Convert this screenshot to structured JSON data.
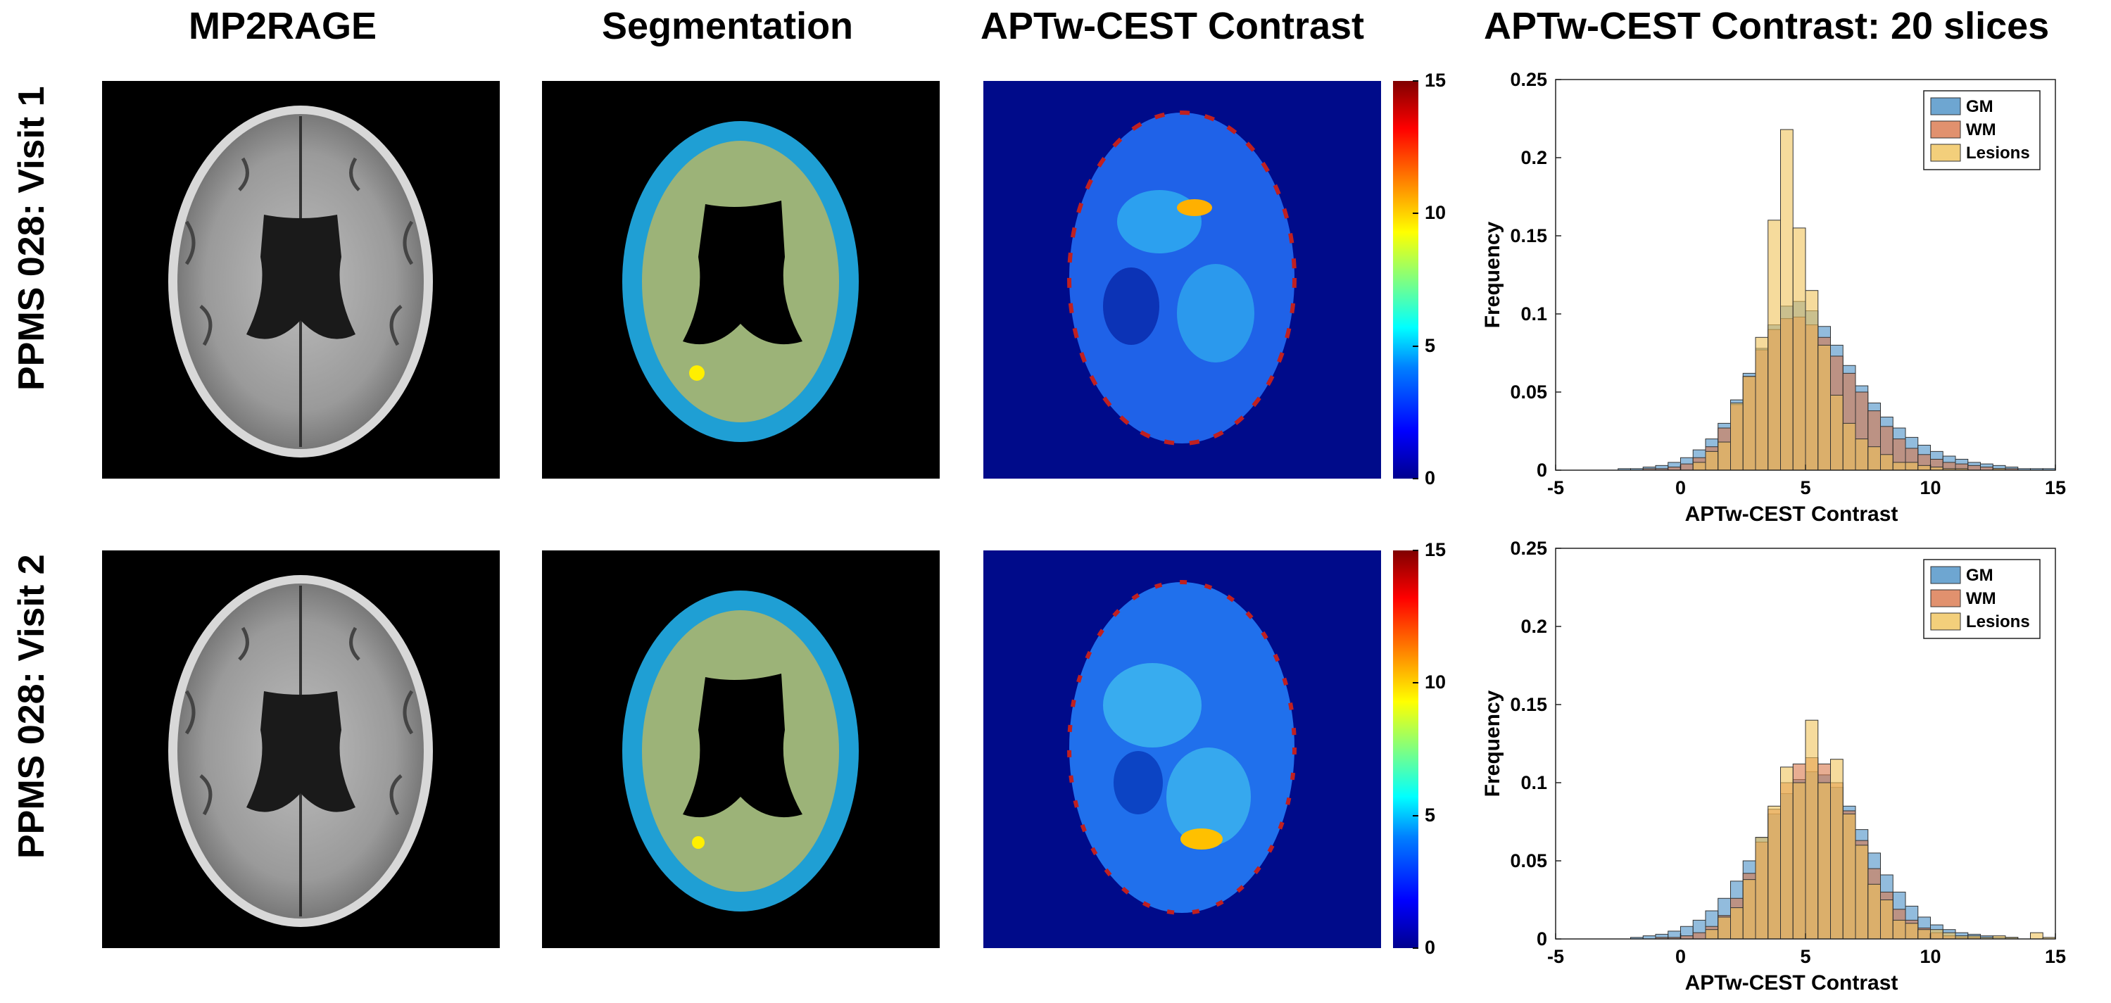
{
  "column_titles": {
    "mp2rage": "MP2RAGE",
    "segmentation": "Segmentation",
    "cest": "APTw-CEST Contrast",
    "histogram": "APTw-CEST Contrast: 20 slices"
  },
  "row_labels": [
    "PPMS 028: Visit 1",
    "PPMS 028: Visit 2"
  ],
  "colorbar": {
    "ticks": [
      "0",
      "5",
      "10",
      "15"
    ],
    "range": [
      0,
      15
    ]
  },
  "colors": {
    "GM": "#4a90c6",
    "WM": "#d9764a",
    "Lesions": "#f0c35a",
    "seg_gm": "#1f9fd4",
    "seg_wm": "#9cb378",
    "seg_lesion": "#ffef00",
    "cest_background": "#000b8a"
  },
  "chart_data": [
    {
      "type": "bar",
      "title": "",
      "xlabel": "APTw-CEST Contrast",
      "ylabel": "Frequency",
      "xlim": [
        -5,
        15
      ],
      "ylim": [
        0,
        0.25
      ],
      "xticks": [
        "-5",
        "0",
        "5",
        "10",
        "15"
      ],
      "yticks": [
        "0",
        "0.05",
        "0.1",
        "0.15",
        "0.2",
        "0.25"
      ],
      "legend": "top-right",
      "bin_width": 0.5,
      "bin_start": -5,
      "series": [
        {
          "name": "GM",
          "values": [
            0,
            0,
            0,
            0,
            0,
            0.001,
            0.001,
            0.002,
            0.003,
            0.005,
            0.008,
            0.013,
            0.02,
            0.03,
            0.045,
            0.062,
            0.078,
            0.093,
            0.105,
            0.108,
            0.102,
            0.092,
            0.08,
            0.067,
            0.054,
            0.043,
            0.034,
            0.027,
            0.021,
            0.016,
            0.012,
            0.009,
            0.007,
            0.005,
            0.004,
            0.003,
            0.002,
            0.001,
            0.001,
            0.001
          ]
        },
        {
          "name": "WM",
          "values": [
            0,
            0,
            0,
            0,
            0,
            0,
            0,
            0.001,
            0.001,
            0.002,
            0.004,
            0.008,
            0.015,
            0.027,
            0.042,
            0.06,
            0.077,
            0.09,
            0.097,
            0.098,
            0.093,
            0.085,
            0.073,
            0.062,
            0.05,
            0.038,
            0.028,
            0.02,
            0.014,
            0.01,
            0.007,
            0.005,
            0.004,
            0.003,
            0.002,
            0.001,
            0.001,
            0,
            0,
            0
          ]
        },
        {
          "name": "Lesions",
          "values": [
            0,
            0,
            0,
            0,
            0,
            0,
            0,
            0,
            0,
            0,
            0,
            0.005,
            0.012,
            0.018,
            0.043,
            0.06,
            0.085,
            0.16,
            0.218,
            0.155,
            0.115,
            0.08,
            0.048,
            0.03,
            0.02,
            0.015,
            0.01,
            0.005,
            0.005,
            0.003,
            0.002,
            0.001,
            0.001,
            0,
            0,
            0.001,
            0,
            0,
            0,
            0
          ]
        }
      ]
    },
    {
      "type": "bar",
      "title": "",
      "xlabel": "APTw-CEST Contrast",
      "ylabel": "Frequency",
      "xlim": [
        -5,
        15
      ],
      "ylim": [
        0,
        0.25
      ],
      "xticks": [
        "-5",
        "0",
        "5",
        "10",
        "15"
      ],
      "yticks": [
        "0",
        "0.05",
        "0.1",
        "0.15",
        "0.2",
        "0.25"
      ],
      "legend": "top-right",
      "bin_width": 0.5,
      "bin_start": -5,
      "series": [
        {
          "name": "GM",
          "values": [
            0,
            0,
            0,
            0,
            0,
            0,
            0.001,
            0.002,
            0.003,
            0.005,
            0.008,
            0.012,
            0.018,
            0.026,
            0.037,
            0.05,
            0.065,
            0.08,
            0.093,
            0.102,
            0.107,
            0.105,
            0.097,
            0.085,
            0.07,
            0.055,
            0.041,
            0.03,
            0.021,
            0.014,
            0.009,
            0.006,
            0.004,
            0.003,
            0.002,
            0.001,
            0.001,
            0,
            0,
            0
          ]
        },
        {
          "name": "WM",
          "values": [
            0,
            0,
            0,
            0,
            0,
            0,
            0,
            0,
            0.001,
            0.001,
            0.002,
            0.004,
            0.008,
            0.015,
            0.026,
            0.042,
            0.062,
            0.083,
            0.1,
            0.112,
            0.116,
            0.112,
            0.1,
            0.082,
            0.063,
            0.045,
            0.03,
            0.019,
            0.012,
            0.007,
            0.004,
            0.002,
            0.001,
            0.001,
            0,
            0,
            0,
            0,
            0,
            0
          ]
        },
        {
          "name": "Lesions",
          "values": [
            0,
            0,
            0,
            0,
            0,
            0,
            0,
            0,
            0,
            0,
            0,
            0,
            0.006,
            0.014,
            0.02,
            0.038,
            0.065,
            0.085,
            0.11,
            0.1,
            0.14,
            0.1,
            0.115,
            0.08,
            0.06,
            0.035,
            0.025,
            0.012,
            0.01,
            0.006,
            0.006,
            0.004,
            0.002,
            0.002,
            0.001,
            0.002,
            0.001,
            0,
            0.004,
            0.001
          ]
        }
      ]
    }
  ]
}
